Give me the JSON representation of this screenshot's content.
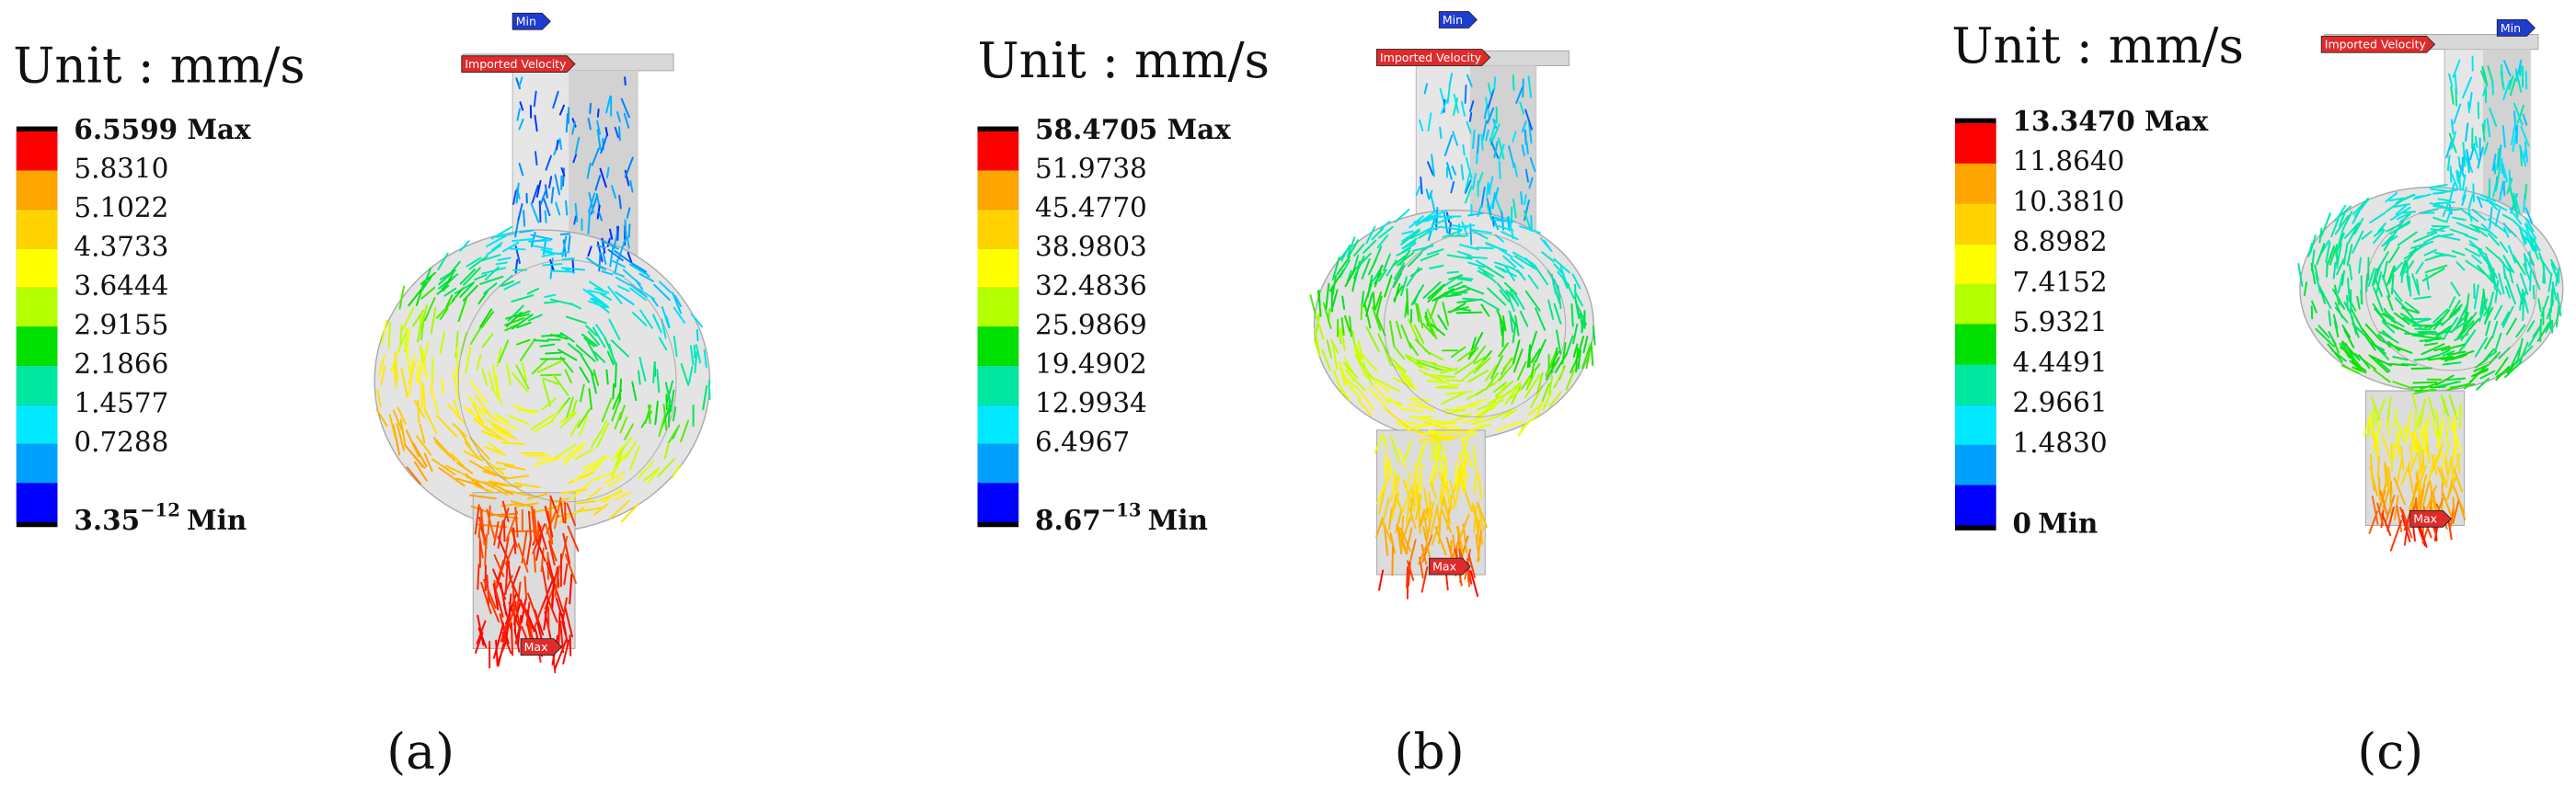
{
  "panels": [
    {
      "unit": "Unit : mm/s",
      "caption": "(a)",
      "min_tag": "Min",
      "max_tag": "Max",
      "inlet_tag": "Imported Velocity",
      "legend": {
        "max": "6.5599 Max",
        "levels": [
          "5.8310",
          "5.1022",
          "4.3733",
          "3.6444",
          "2.9155",
          "2.1866",
          "1.4577",
          "0.7288"
        ],
        "min": {
          "value": "3.35",
          "exponent": "−12",
          "suffix": "Min"
        }
      }
    },
    {
      "unit": "Unit : mm/s",
      "caption": "(b)",
      "min_tag": "Min",
      "max_tag": "Max",
      "inlet_tag": "Imported Velocity",
      "legend": {
        "max": "58.4705 Max",
        "levels": [
          "51.9738",
          "45.4770",
          "38.9803",
          "32.4836",
          "25.9869",
          "19.4902",
          "12.9934",
          "6.4967"
        ],
        "min": {
          "value": "8.67",
          "exponent": "−13",
          "suffix": "Min"
        }
      }
    },
    {
      "unit": "Unit : mm/s",
      "caption": "(c)",
      "min_tag": "Min",
      "max_tag": "Max",
      "inlet_tag": "Imported Velocity",
      "legend": {
        "max": "13.3470 Max",
        "levels": [
          "11.8640",
          "10.3810",
          "8.8982",
          "7.4152",
          "5.9321",
          "4.4491",
          "2.9661",
          "1.4830"
        ],
        "min": {
          "value": "0",
          "suffix": "Min"
        }
      }
    }
  ]
}
